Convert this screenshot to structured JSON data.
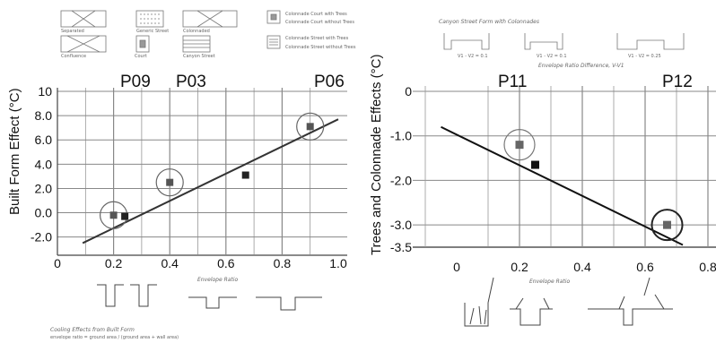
{
  "chart_data": [
    {
      "type": "scatter",
      "ylabel": "Built Form Effect (°C)",
      "xlabel": "Envelope Ratio",
      "caption_line1": "Cooling Effects from Built Form",
      "caption_line2": "envelope ratio = ground area / (ground area + wall area)",
      "xlim": [
        0,
        1.0
      ],
      "ylim": [
        -3.5,
        10
      ],
      "x_ticks": [
        "0",
        "0.2",
        "0.4",
        "0.6",
        "0.8",
        "1.0"
      ],
      "y_ticks": [
        "10",
        "8.0",
        "6.0",
        "4.0",
        "2.0",
        "0.0",
        "-2.0"
      ],
      "points": [
        {
          "x": 0.2,
          "y": -0.2
        },
        {
          "x": 0.24,
          "y": -0.3
        },
        {
          "x": 0.4,
          "y": 2.5
        },
        {
          "x": 0.67,
          "y": 3.1
        },
        {
          "x": 0.9,
          "y": 7.1
        }
      ],
      "highlighted": [
        {
          "label": "P09",
          "x": 0.2,
          "y": -0.2
        },
        {
          "label": "P03",
          "x": 0.4,
          "y": 2.5
        },
        {
          "label": "P06",
          "x": 0.9,
          "y": 7.1
        }
      ],
      "trendline": [
        {
          "x": 0.09,
          "y": -2.5
        },
        {
          "x": 1.0,
          "y": 7.7
        }
      ],
      "legend": [
        "Separated",
        "Generic Street",
        "Colonnaded",
        "Colonnade Court with Trees",
        "Colonnade Court without Trees",
        "Confluence",
        "Court",
        "Canyon Street",
        "Colonnade Street with Trees",
        "Colonnade Street without Trees"
      ]
    },
    {
      "type": "scatter",
      "ylabel": "Trees and Colonnade Effects (°C)",
      "xlabel": "Envelope Ratio",
      "xlim": [
        -0.1,
        0.8
      ],
      "ylim": [
        -3.5,
        0
      ],
      "x_ticks": [
        "0",
        "0.2",
        "0.4",
        "0.6",
        "0.8"
      ],
      "y_ticks": [
        "0",
        "-1.0",
        "-2.0",
        "-3.0",
        "-3.5"
      ],
      "points": [
        {
          "x": 0.2,
          "y": -1.2
        },
        {
          "x": 0.25,
          "y": -1.65
        },
        {
          "x": 0.67,
          "y": -3.0
        }
      ],
      "highlighted": [
        {
          "label": "P11",
          "x": 0.2,
          "y": -1.2
        },
        {
          "label": "P12",
          "x": 0.67,
          "y": -3.0
        }
      ],
      "trendline": [
        {
          "x": -0.05,
          "y": -0.8
        },
        {
          "x": 0.72,
          "y": -3.45
        }
      ],
      "top_title": "Canyon Street Form with Colonnades",
      "top_subtitle": "Envelope Ratio Difference, V-V1",
      "top_labels": [
        "V1 - V2 = 0.1",
        "V1 - V2 = 0.1",
        "V1 - V2 = 0.25"
      ]
    }
  ]
}
